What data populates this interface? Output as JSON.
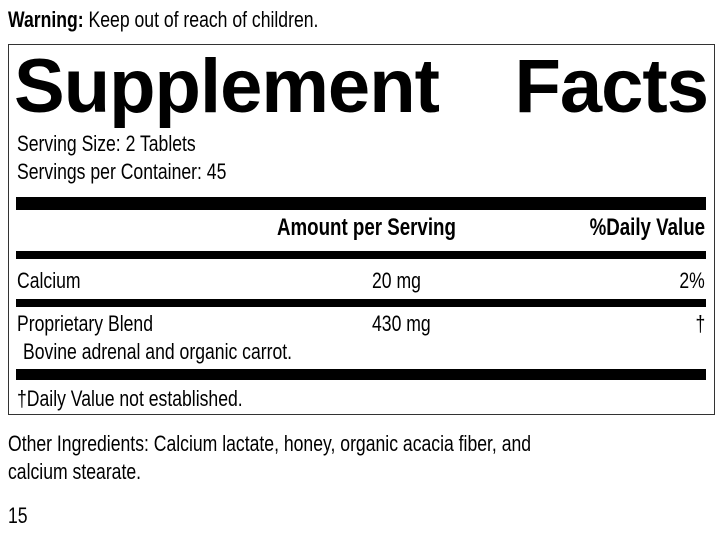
{
  "warning": {
    "label": "Warning:",
    "text": "Keep out of reach of children."
  },
  "panel": {
    "title_left": "Supplement",
    "title_right": "Facts",
    "serving_size": "Serving Size: 2 Tablets",
    "servings_per_container": "Servings per Container: 45",
    "headers": {
      "amount": "Amount per Serving",
      "daily_value": "%Daily Value"
    },
    "rows": [
      {
        "name": "Calcium",
        "amount": "20 mg",
        "dv": "2%"
      },
      {
        "name": "Proprietary Blend",
        "amount": "430 mg",
        "dv": "†",
        "detail": "Bovine adrenal and organic carrot."
      }
    ],
    "footnote": "†Daily Value not established."
  },
  "other_ingredients": {
    "line1": "Other Ingredients: Calcium lactate, honey, organic acacia fiber, and",
    "line2": "calcium stearate."
  },
  "page_number": "15"
}
